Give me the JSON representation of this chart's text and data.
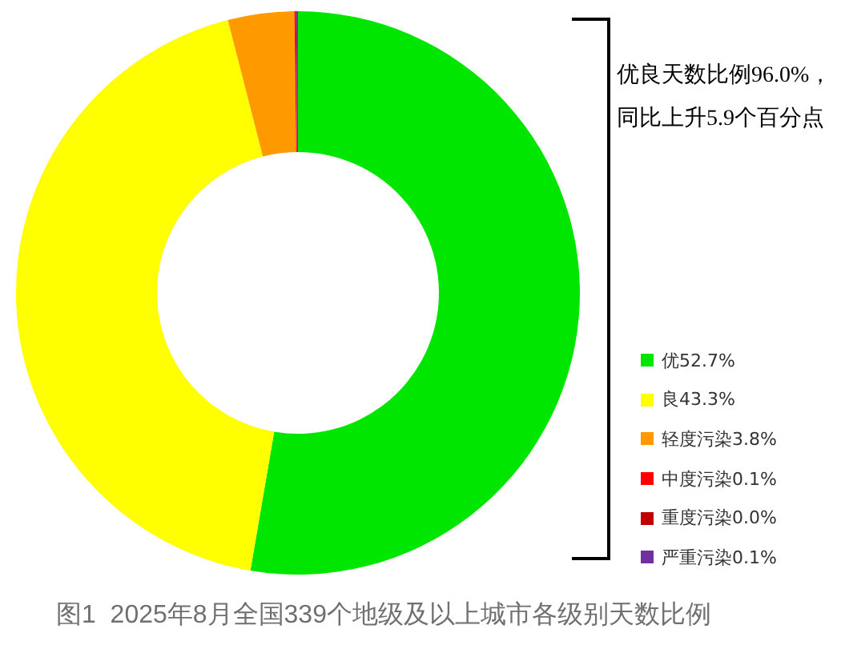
{
  "chart_data": {
    "type": "donut",
    "title": "图1  2025年8月全国339个地级及以上城市各级别天数比例",
    "categories": [
      "优52.7%",
      "良43.3%",
      "轻度污染3.8%",
      "中度污染0.1%",
      "重度污染0.0%",
      "严重污染0.1%"
    ],
    "values": [
      52.7,
      43.3,
      3.8,
      0.1,
      0.0,
      0.1
    ],
    "colors": [
      "#00e600",
      "#ffff00",
      "#ff9900",
      "#ff0000",
      "#c00000",
      "#7030a0"
    ],
    "legend": "right",
    "annotations": [
      "优良天数比例96.0%，",
      "同比上升5.9个百分点"
    ]
  }
}
